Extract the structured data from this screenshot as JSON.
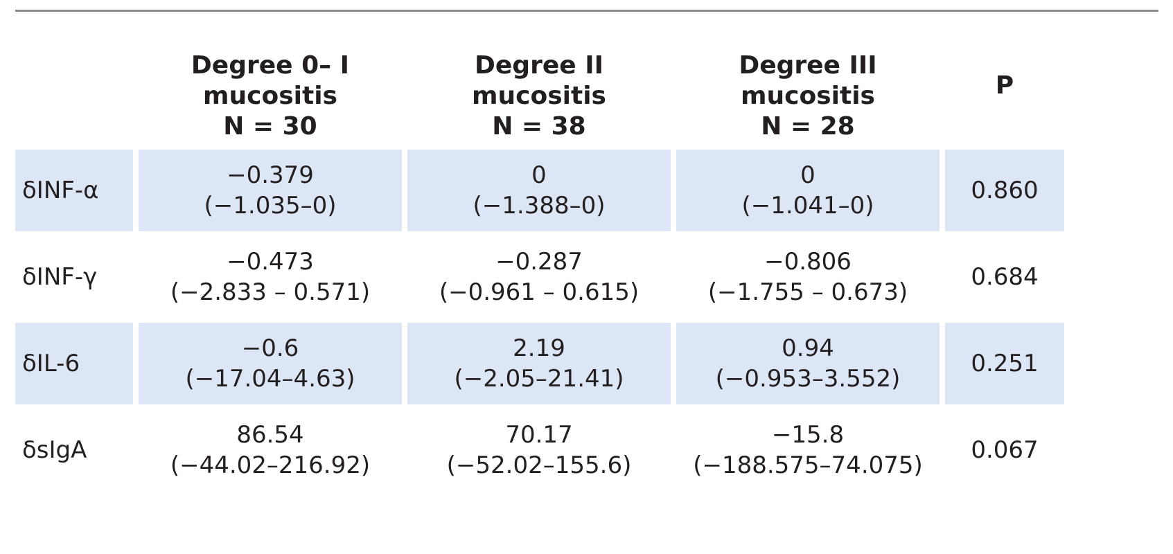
{
  "table": {
    "columns": [
      {
        "line1": "",
        "line2": "",
        "line3": ""
      },
      {
        "line1": "Degree 0– I",
        "line2": "mucositis",
        "line3": "N = 30"
      },
      {
        "line1": "Degree II",
        "line2": "mucositis",
        "line3": "N = 38"
      },
      {
        "line1": "Degree III",
        "line2": "mucositis",
        "line3": "N = 28"
      },
      {
        "line1": "P",
        "line2": "",
        "line3": ""
      }
    ],
    "rows": [
      {
        "label": "δINF-α",
        "d1": {
          "median": "−0.379",
          "range": "(−1.035–0)"
        },
        "d2": {
          "median": "0",
          "range": "(−1.388–0)"
        },
        "d3": {
          "median": "0",
          "range": "(−1.041–0)"
        },
        "p": "0.860",
        "shaded": true
      },
      {
        "label": "δINF-γ",
        "d1": {
          "median": "−0.473",
          "range": "(−2.833 – 0.571)"
        },
        "d2": {
          "median": "−0.287",
          "range": "(−0.961 – 0.615)"
        },
        "d3": {
          "median": "−0.806",
          "range": "(−1.755 – 0.673)"
        },
        "p": "0.684",
        "shaded": false
      },
      {
        "label": "δIL-6",
        "d1": {
          "median": "−0.6",
          "range": "(−17.04–4.63)"
        },
        "d2": {
          "median": "2.19",
          "range": "(−2.05–21.41)"
        },
        "d3": {
          "median": "0.94",
          "range": "(−0.953–3.552)"
        },
        "p": "0.251",
        "shaded": true
      },
      {
        "label": "δsIgA",
        "d1": {
          "median": "86.54",
          "range": "(−44.02–216.92)"
        },
        "d2": {
          "median": "70.17",
          "range": "(−52.02–155.6)"
        },
        "d3": {
          "median": "−15.8",
          "range": "(−188.575–74.075)"
        },
        "p": "0.067",
        "shaded": false
      }
    ],
    "shade_color": "#dde6f4",
    "rule_color": "#8c8c8c"
  }
}
